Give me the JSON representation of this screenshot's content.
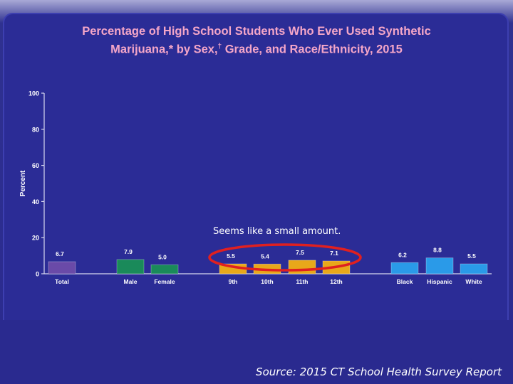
{
  "title": {
    "line1": "Percentage of High School Students Who Ever Used Synthetic",
    "line2_a": "Marijuana,* by Sex,",
    "line2_dagger": "†",
    "line2_b": " Grade, and Race/Ethnicity, 2015"
  },
  "annotation": "Seems like a small amount.",
  "source": "Source: 2015 CT School Health Survey Report",
  "colors": {
    "background": "#2a2a8f",
    "title": "#f4a6c8",
    "total": "#6a4aa8",
    "sex": "#1a8a5a",
    "grade": "#e8a81a",
    "race": "#2a9ae8",
    "highlight_ellipse": "#e02020"
  },
  "chart_data": {
    "type": "bar",
    "ylabel": "Percent",
    "xlabel": "",
    "ylim": [
      0,
      100
    ],
    "yticks": [
      0,
      20,
      40,
      60,
      80,
      100
    ],
    "grid": false,
    "categories": [
      "Total",
      "Male",
      "Female",
      "9th",
      "10th",
      "11th",
      "12th",
      "Black",
      "Hispanic",
      "White"
    ],
    "values": [
      6.7,
      7.9,
      5.0,
      5.5,
      5.4,
      7.5,
      7.1,
      6.2,
      8.8,
      5.5
    ],
    "value_labels": [
      "6.7",
      "7.9",
      "5.0",
      "5.5",
      "5.4",
      "7.5",
      "7.1",
      "6.2",
      "8.8",
      "5.5"
    ],
    "groups": [
      "total",
      "sex",
      "sex",
      "grade",
      "grade",
      "grade",
      "grade",
      "race",
      "race",
      "race"
    ]
  }
}
